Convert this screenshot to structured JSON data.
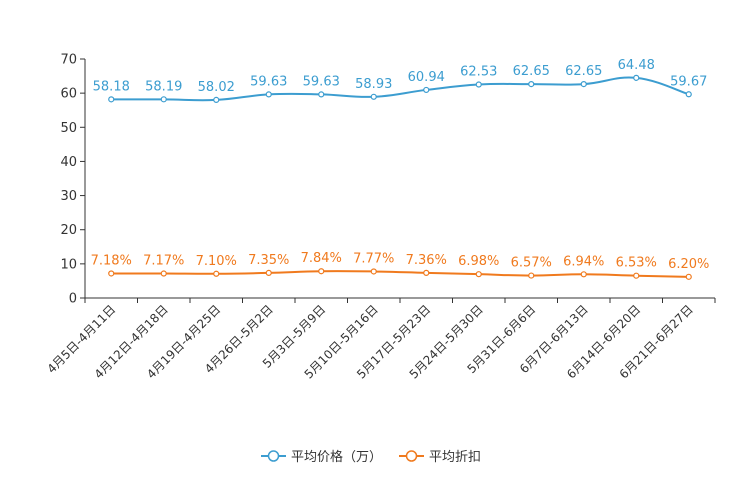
{
  "chart_data": {
    "type": "line",
    "categories": [
      "4月5日-4月11日",
      "4月12日-4月18日",
      "4月19日-4月25日",
      "4月26日-5月2日",
      "5月3日-5月9日",
      "5月10日-5月16日",
      "5月17日-5月23日",
      "5月24日-5月30日",
      "5月31日-6月6日",
      "6月7日-6月13日",
      "6月14日-6月20日",
      "6月21日-6月27日"
    ],
    "series": [
      {
        "name": "平均价格（万）",
        "color": "#3c9dd0",
        "values": [
          58.18,
          58.19,
          58.02,
          59.63,
          59.63,
          58.93,
          60.94,
          62.53,
          62.65,
          62.65,
          64.48,
          59.67
        ],
        "labels": [
          "58.18",
          "58.19",
          "58.02",
          "59.63",
          "59.63",
          "58.93",
          "60.94",
          "62.53",
          "62.65",
          "62.65",
          "64.48",
          "59.67"
        ]
      },
      {
        "name": "平均折扣",
        "color": "#f07a1e",
        "values": [
          7.18,
          7.17,
          7.1,
          7.35,
          7.84,
          7.77,
          7.36,
          6.98,
          6.57,
          6.94,
          6.53,
          6.2
        ],
        "labels": [
          "7.18%",
          "7.17%",
          "7.10%",
          "7.35%",
          "7.84%",
          "7.77%",
          "7.36%",
          "6.98%",
          "6.57%",
          "6.94%",
          "6.53%",
          "6.20%"
        ]
      }
    ],
    "yticks": [
      "0",
      "10",
      "20",
      "30",
      "40",
      "50",
      "60",
      "70"
    ],
    "ylim": [
      0,
      70
    ],
    "title": "",
    "xlabel": "",
    "ylabel": "",
    "legend_position": "bottom-center"
  }
}
